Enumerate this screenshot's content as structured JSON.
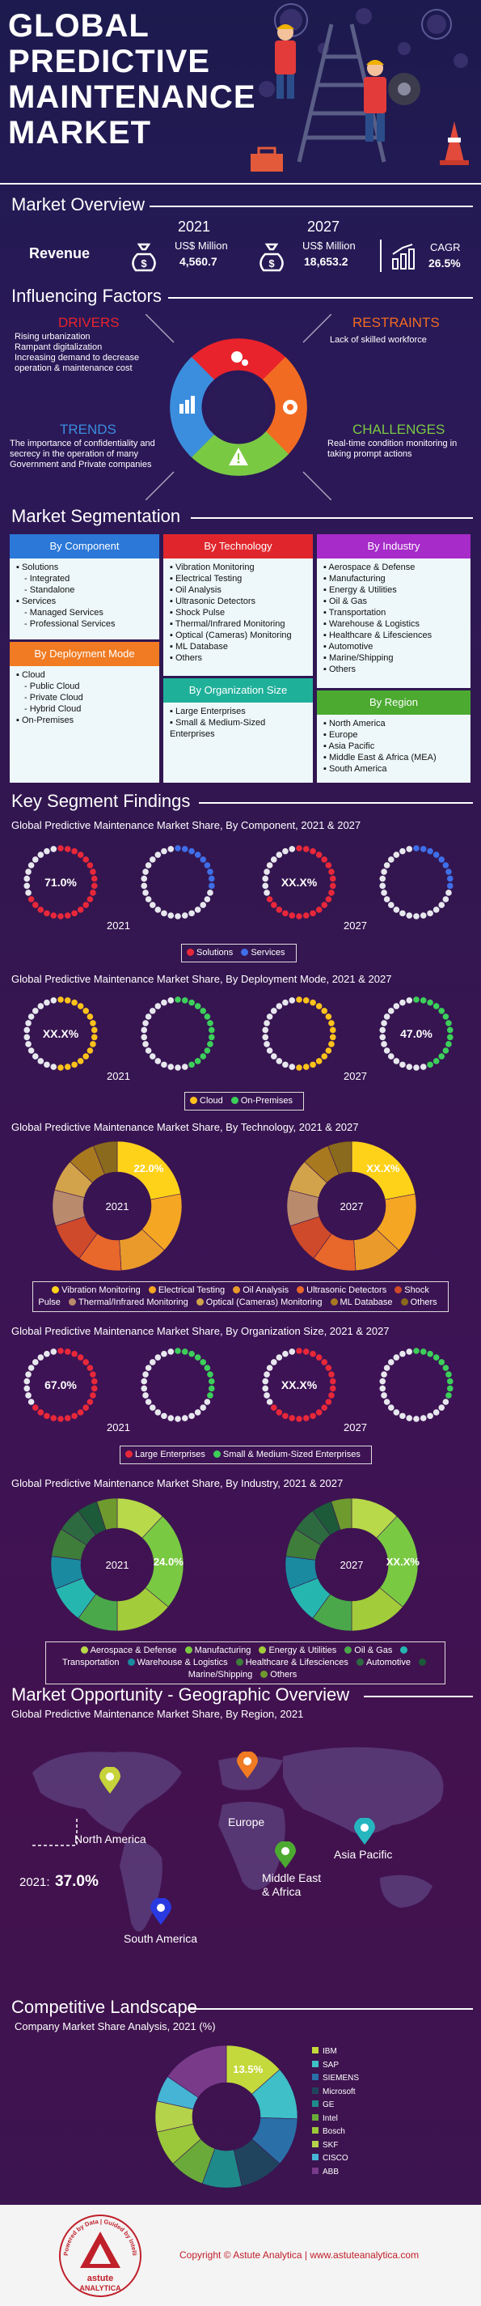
{
  "header": {
    "title_lines": [
      "GLOBAL",
      "PREDICTIVE",
      "MAINTENANCE",
      "MARKET"
    ]
  },
  "overview": {
    "title": "Market Overview",
    "revenue_label": "Revenue",
    "y2021": "2021",
    "y2021_unit": "US$ Million",
    "y2021_value": "4,560.7",
    "y2027": "2027",
    "y2027_unit": "US$ Million",
    "y2027_value": "18,653.2",
    "cagr_label": "CAGR",
    "cagr_value": "26.5%"
  },
  "factors": {
    "title": "Influencing Factors",
    "drivers": {
      "label": "DRIVERS",
      "color": "#e8232c",
      "items": [
        "Rising urbanization",
        "Rampant digitalization",
        "Increasing demand to decrease operation & maintenance cost"
      ]
    },
    "restraints": {
      "label": "RESTRAINTS",
      "color": "#f26b22",
      "items": [
        "Lack of skilled workforce"
      ]
    },
    "trends": {
      "label": "TRENDS",
      "color": "#3b8ede",
      "items": [
        "The importance of confidentiality and secrecy in the operation of many Government and Private companies"
      ]
    },
    "challenges": {
      "label": "CHALLENGES",
      "color": "#7ac943",
      "items": [
        "Real-time condition monitoring in taking prompt actions"
      ]
    }
  },
  "segmentation": {
    "title": "Market Segmentation",
    "component": {
      "label": "By Component",
      "color": "#2b78d8",
      "items": [
        {
          "t": "Solutions",
          "sub": false
        },
        {
          "t": "Integrated",
          "sub": true
        },
        {
          "t": "Standalone",
          "sub": true
        },
        {
          "t": "Services",
          "sub": false
        },
        {
          "t": "Managed Services",
          "sub": true
        },
        {
          "t": "Professional Services",
          "sub": true
        }
      ]
    },
    "deployment": {
      "label": "By Deployment Mode",
      "color": "#f07b22",
      "items": [
        {
          "t": "Cloud",
          "sub": false
        },
        {
          "t": "Public Cloud",
          "sub": true
        },
        {
          "t": "Private Cloud",
          "sub": true
        },
        {
          "t": "Hybrid Cloud",
          "sub": true
        },
        {
          "t": "On-Premises",
          "sub": false
        }
      ]
    },
    "technology": {
      "label": "By Technology",
      "color": "#e0262c",
      "items": [
        "Vibration Monitoring",
        "Electrical Testing",
        "Oil Analysis",
        "Ultrasonic Detectors",
        "Shock Pulse",
        "Thermal/Infrared Monitoring",
        "Optical (Cameras) Monitoring",
        "ML Database",
        "Others"
      ]
    },
    "orgsize": {
      "label": "By Organization Size",
      "color": "#1fb09a",
      "items": [
        "Large Enterprises",
        "Small & Medium-Sized Enterprises"
      ]
    },
    "industry": {
      "label": "By Industry",
      "color": "#a62bc9",
      "items": [
        "Aerospace & Defense",
        "Manufacturing",
        "Energy & Utilities",
        "Oil & Gas",
        "Transportation",
        "Warehouse & Logistics",
        "Healthcare & Lifesciences",
        "Automotive",
        "Marine/Shipping",
        "Others"
      ]
    },
    "region": {
      "label": "By Region",
      "color": "#4caa31",
      "items": [
        "North America",
        "Europe",
        "Asia Pacific",
        "Middle East & Africa (MEA)",
        "South America"
      ]
    }
  },
  "findings": {
    "title": "Key Segment Findings",
    "component_title": "Global Predictive Maintenance Market Share, By Component, 2021 & 2027",
    "deployment_title": "Global Predictive Maintenance Market Share, By Deployment Mode, 2021 & 2027",
    "technology_title": "Global Predictive Maintenance Market Share, By Technology, 2021 & 2027",
    "orgsize_title": "Global Predictive Maintenance Market Share, By Organization Size, 2021 & 2027",
    "industry_title": "Global Predictive Maintenance Market Share, By Industry, 2021 & 2027",
    "label_2021": "2021",
    "label_2027": "2027"
  },
  "geo": {
    "title": "Market Opportunity - Geographic Overview",
    "subtitle": "Global Predictive Maintenance Market Share, By Region, 2021",
    "regions": [
      "North America",
      "Europe",
      "Asia Pacific",
      "Middle East\n& Africa",
      "South America"
    ],
    "highlight_year": "2021:",
    "highlight_value": "37.0%"
  },
  "competitive": {
    "title": "Competitive Landscape",
    "subtitle": "Company Market Share Analysis, 2021 (%)"
  },
  "footer": {
    "copyright": "Copyright © Astute Analytica  |  www.astuteanalytica.com",
    "logo_top": "Powered by Data | Guided by Intelligence",
    "logo_name": "astute",
    "logo_sub": "ANALYTICA"
  },
  "chart_data": [
    {
      "type": "pie",
      "title": "Global Predictive Maintenance Market Share, By Component, 2021 & 2027",
      "series": [
        {
          "name": "2021",
          "categories": [
            "Solutions",
            "Services"
          ],
          "labels": [
            "71.0%",
            ""
          ],
          "values": [
            71.0,
            29.0
          ]
        },
        {
          "name": "2027",
          "categories": [
            "Solutions",
            "Services"
          ],
          "labels": [
            "XX.X%",
            ""
          ],
          "values": [
            70,
            30
          ]
        }
      ],
      "colors": [
        "#e8283a",
        "#3f6ee8"
      ]
    },
    {
      "type": "pie",
      "title": "Global Predictive Maintenance Market Share, By Deployment Mode, 2021 & 2027",
      "series": [
        {
          "name": "2021",
          "categories": [
            "Cloud",
            "On-Premises"
          ],
          "labels": [
            "XX.X%",
            ""
          ],
          "values": [
            53,
            47
          ]
        },
        {
          "name": "2027",
          "categories": [
            "Cloud",
            "On-Premises"
          ],
          "labels": [
            "",
            "47.0%"
          ],
          "values": [
            53,
            47
          ]
        }
      ],
      "colors": [
        "#ffc21a",
        "#3ccf5a"
      ]
    },
    {
      "type": "pie",
      "title": "Global Predictive Maintenance Market Share, By Technology, 2021 & 2027",
      "categories": [
        "Vibration Monitoring",
        "Electrical Testing",
        "Oil Analysis",
        "Ultrasonic Detectors",
        "Shock Pulse",
        "Thermal/Infrared Monitoring",
        "Optical (Cameras) Monitoring",
        "ML Database",
        "Others"
      ],
      "series": [
        {
          "name": "2021",
          "labels": [
            "22.0%",
            "",
            "",
            "",
            "",
            "",
            "",
            "",
            ""
          ],
          "values": [
            22,
            15,
            12,
            11,
            10,
            9,
            8,
            7,
            6
          ]
        },
        {
          "name": "2027",
          "labels": [
            "XX.X%",
            "",
            "",
            "",
            "",
            "",
            "",
            "",
            ""
          ],
          "values": [
            22,
            15,
            12,
            11,
            10,
            9,
            8,
            7,
            6
          ]
        }
      ],
      "colors": [
        "#ffd21a",
        "#f5a623",
        "#e99a2b",
        "#e8672a",
        "#cf4a2a",
        "#b98b6c",
        "#d2a34a",
        "#a8791f",
        "#8a6a1c"
      ]
    },
    {
      "type": "pie",
      "title": "Global Predictive Maintenance Market Share, By Organization Size, 2021 & 2027",
      "series": [
        {
          "name": "2021",
          "categories": [
            "Large Enterprises",
            "Small & Medium-Sized Enterprises"
          ],
          "labels": [
            "67.0%",
            ""
          ],
          "values": [
            67.0,
            33.0
          ]
        },
        {
          "name": "2027",
          "categories": [
            "Large Enterprises",
            "Small & Medium-Sized Enterprises"
          ],
          "labels": [
            "XX.X%",
            ""
          ],
          "values": [
            67,
            33
          ]
        }
      ],
      "colors": [
        "#e8283a",
        "#3ccf5a"
      ]
    },
    {
      "type": "pie",
      "title": "Global Predictive Maintenance Market Share, By Industry, 2021 & 2027",
      "categories": [
        "Aerospace & Defense",
        "Manufacturing",
        "Energy & Utilities",
        "Oil & Gas",
        "Transportation",
        "Warehouse & Logistics",
        "Healthcare & Lifesciences",
        "Automotive",
        "Marine/Shipping",
        "Others"
      ],
      "series": [
        {
          "name": "2021",
          "labels": [
            "",
            "24.0%",
            "",
            "",
            "",
            "",
            "",
            "",
            "",
            ""
          ],
          "values": [
            12,
            24,
            14,
            10,
            9,
            8,
            7,
            6,
            5,
            5
          ]
        },
        {
          "name": "2027",
          "labels": [
            "",
            "XX.X%",
            "",
            "",
            "",
            "",
            "",
            "",
            "",
            ""
          ],
          "values": [
            12,
            24,
            14,
            10,
            9,
            8,
            7,
            6,
            5,
            5
          ]
        }
      ],
      "colors": [
        "#b7d94a",
        "#7ac943",
        "#a3cc3a",
        "#4aa84a",
        "#26b6b0",
        "#1a8aa0",
        "#3e7d3a",
        "#2e6a40",
        "#1d5a3a",
        "#6e9a2e"
      ]
    },
    {
      "type": "pie",
      "title": "Company Market Share Analysis, 2021 (%)",
      "categories": [
        "IBM",
        "SAP",
        "SIEMENS",
        "Microsoft",
        "GE",
        "Intel",
        "Bosch",
        "SKF",
        "CISCO",
        "ABB"
      ],
      "series": [
        {
          "name": "2021",
          "labels": [
            "13.5%",
            "",
            "",
            "",
            "",
            "",
            "",
            "",
            "",
            ""
          ],
          "values": [
            13.5,
            12,
            11,
            10,
            9,
            8,
            8,
            7,
            6,
            15.5
          ]
        }
      ],
      "colors": [
        "#c4d93c",
        "#3fbfc8",
        "#2a6fa8",
        "#21445e",
        "#1f8a8a",
        "#6aaa3a",
        "#9ac83a",
        "#b4d24a",
        "#46b4d4",
        "#7a3a8a"
      ]
    }
  ]
}
